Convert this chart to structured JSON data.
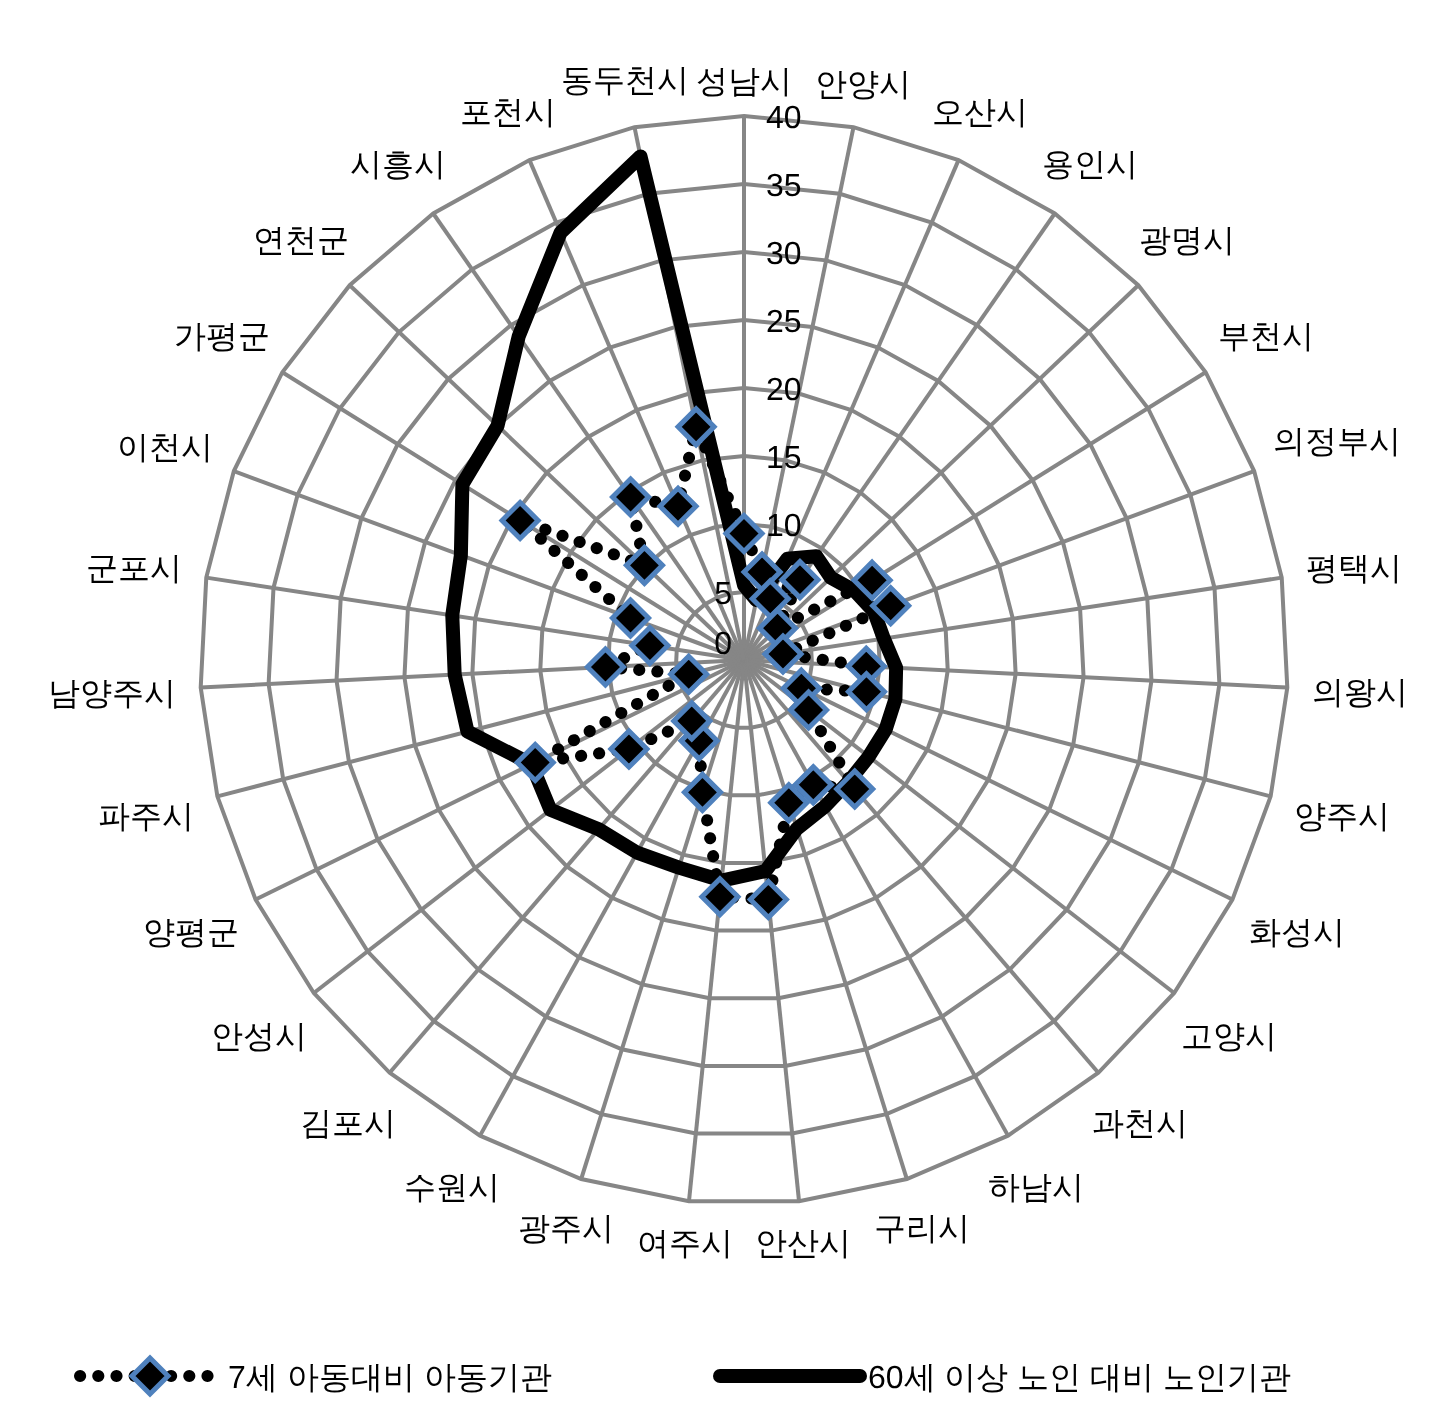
{
  "chart_data": {
    "type": "radar",
    "categories": [
      "성남시",
      "안양시",
      "오산시",
      "용인시",
      "광명시",
      "부천시",
      "의정부시",
      "평택시",
      "의왕시",
      "양주시",
      "화성시",
      "고양시",
      "과천시",
      "하남시",
      "구리시",
      "안산시",
      "여주시",
      "광주시",
      "수원시",
      "김포시",
      "안성시",
      "양평군",
      "파주시",
      "남양주시",
      "군포시",
      "이천시",
      "가평군",
      "연천군",
      "시흥시",
      "포천시",
      "동두천시"
    ],
    "ylim": [
      0,
      40
    ],
    "yticks": [
      0,
      5,
      10,
      15,
      20,
      25,
      30,
      35,
      40
    ],
    "grid": true,
    "legend": "bottom",
    "series": [
      {
        "name": "7세 아동대비 아동기관",
        "color": "#000000",
        "marker": "diamond",
        "line_style": "dotted",
        "values": [
          9.3,
          6.6,
          4.9,
          7.2,
          3.4,
          11.1,
          11.5,
          2.9,
          9,
          9.3,
          4.7,
          6,
          12.5,
          10.5,
          11,
          17.7,
          17.5,
          10.2,
          6.8,
          5.9,
          10.7,
          17.1,
          4.2,
          10.2,
          7,
          8.9,
          19.4,
          10.1,
          14.6,
          12.3,
          17.5
        ]
      },
      {
        "name": "60세 이상 노인 대비 노인기관",
        "color": "#000000",
        "marker": "none",
        "line_style": "solid",
        "values": [
          5.5,
          4.5,
          8.1,
          9.3,
          8.8,
          9.6,
          10.2,
          10.4,
          11.2,
          11.5,
          11.6,
          11.6,
          11.8,
          12.3,
          13,
          15.6,
          16.3,
          16,
          16.2,
          16.4,
          18,
          17.4,
          21,
          21.3,
          21.7,
          22.2,
          24.4,
          25,
          29,
          34.2,
          37.8
        ]
      }
    ]
  }
}
